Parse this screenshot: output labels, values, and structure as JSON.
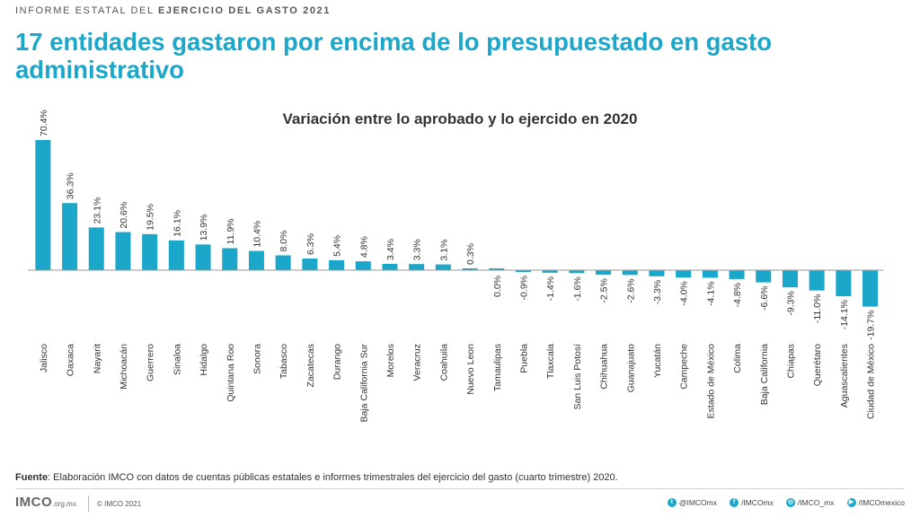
{
  "header": {
    "kicker_prefix": "INFORME ESTATAL DEL ",
    "kicker_bold": "EJERCICIO DEL GASTO 2021",
    "headline": "17 entidades gastaron por encima de lo presupuestado en gasto administrativo"
  },
  "colors": {
    "bar": "#1aa7c9",
    "headline": "#1aa7c9",
    "baseline": "#999999",
    "label": "#333333"
  },
  "chart_data": {
    "type": "bar",
    "title": "Variación entre lo aprobado y lo ejercido en 2020",
    "xlabel": "",
    "ylabel": "",
    "categories": [
      "Jalisco",
      "Oaxaca",
      "Nayarit",
      "Michoacán",
      "Guerrero",
      "Sinaloa",
      "Hidalgo",
      "Quintana Roo",
      "Sonora",
      "Tabasco",
      "Zacatecas",
      "Durango",
      "Baja California Sur",
      "Morelos",
      "Veracruz",
      "Coahuila",
      "Nuevo Leon",
      "Tamaulipas",
      "Puebla",
      "Tlaxcala",
      "San Luis Potosí",
      "Chihuahua",
      "Guanajuato",
      "Yucatán",
      "Campeche",
      "Estado de México",
      "Colima",
      "Baja California",
      "Chiapas",
      "Querétaro",
      "Aguascalientes",
      "Ciudad de México"
    ],
    "values": [
      70.4,
      36.3,
      23.1,
      20.6,
      19.5,
      16.1,
      13.9,
      11.9,
      10.4,
      8.0,
      6.3,
      5.4,
      4.8,
      3.4,
      3.3,
      3.1,
      0.3,
      0.0,
      -0.9,
      -1.4,
      -1.6,
      -2.5,
      -2.6,
      -3.3,
      -4.0,
      -4.1,
      -4.8,
      -6.6,
      -9.3,
      -11.0,
      -14.1,
      -19.7
    ],
    "labels": [
      "70.4%",
      "36.3%",
      "23.1%",
      "20.6%",
      "19.5%",
      "16.1%",
      "13.9%",
      "11.9%",
      "10.4%",
      "8.0%",
      "6.3%",
      "5.4%",
      "4.8%",
      "3.4%",
      "3.3%",
      "3.1%",
      "0.3%",
      "0.0%",
      "-0.9%",
      "-1.4%",
      "-1.6%",
      "-2.5%",
      "-2.6%",
      "-3.3%",
      "-4.0%",
      "-4.1%",
      "-4.8%",
      "-6.6%",
      "-9.3%",
      "-11.0%",
      "-14.1%",
      "-19.7%"
    ],
    "grid": false,
    "legend": "none"
  },
  "source": {
    "label": "Fuente",
    "text": ": Elaboración IMCO con datos de cuentas públicas estatales e informes trimestrales del ejercicio del gasto (cuarto trimestre) 2020."
  },
  "footer": {
    "logo": "IMCO",
    "logo_suffix": ".org.mx",
    "copyright": "© IMCO 2021",
    "socials": [
      {
        "icon": "twitter-icon",
        "glyph": "t",
        "handle": "@IMCOmx"
      },
      {
        "icon": "facebook-icon",
        "glyph": "f",
        "handle": "/IMCOmx"
      },
      {
        "icon": "instagram-icon",
        "glyph": "◎",
        "handle": "/IMCO_mx"
      },
      {
        "icon": "youtube-icon",
        "glyph": "▶",
        "handle": "/IMCOmexico"
      }
    ]
  }
}
